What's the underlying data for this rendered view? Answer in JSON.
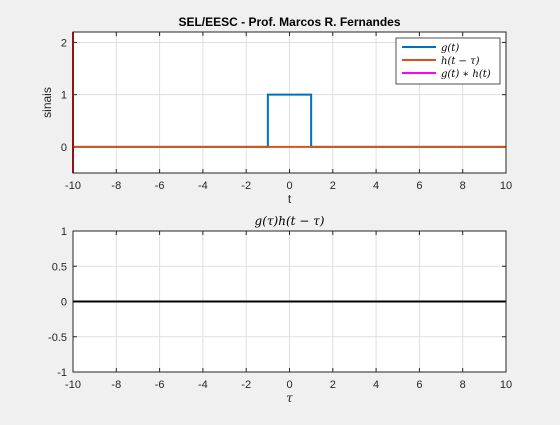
{
  "chart_data": [
    {
      "type": "line",
      "title": "SEL/EESC - Prof. Marcos R. Fernandes",
      "xlabel": "t",
      "ylabel": "sinais",
      "xlim": [
        -10,
        10
      ],
      "ylim": [
        -0.5,
        2.2
      ],
      "xticks": [
        "-10",
        "-8",
        "-6",
        "-4",
        "-2",
        "0",
        "2",
        "4",
        "6",
        "8",
        "10"
      ],
      "yticks": [
        "0",
        "1",
        "2"
      ],
      "grid": true,
      "legend_position": "top-right",
      "series": [
        {
          "name": "g(t)",
          "color": "#0072BD",
          "points": [
            [
              -10,
              0
            ],
            [
              -1,
              0
            ],
            [
              -1,
              1
            ],
            [
              1,
              1
            ],
            [
              1,
              0
            ],
            [
              10,
              0
            ]
          ]
        },
        {
          "name": "h(t − τ)",
          "color": "#D95319",
          "points": [
            [
              -10,
              0
            ],
            [
              10,
              0
            ]
          ]
        },
        {
          "name": "g(t) ∗ h(t)",
          "color": "#FF00FF",
          "points": []
        }
      ],
      "marker": {
        "x": -10,
        "y_from": -0.5,
        "y_to": 2.2,
        "color": "#FF0000"
      }
    },
    {
      "type": "line",
      "title": "g(τ)h(t − τ)",
      "xlabel": "τ",
      "ylabel": "",
      "xlim": [
        -10,
        10
      ],
      "ylim": [
        -1,
        1
      ],
      "xticks": [
        "-10",
        "-8",
        "-6",
        "-4",
        "-2",
        "0",
        "2",
        "4",
        "6",
        "8",
        "10"
      ],
      "yticks": [
        "-1",
        "-0.5",
        "0",
        "0.5",
        "1"
      ],
      "grid": true,
      "series": [
        {
          "color": "#000000",
          "points": [
            [
              -10,
              0
            ],
            [
              10,
              0
            ]
          ]
        }
      ]
    }
  ]
}
